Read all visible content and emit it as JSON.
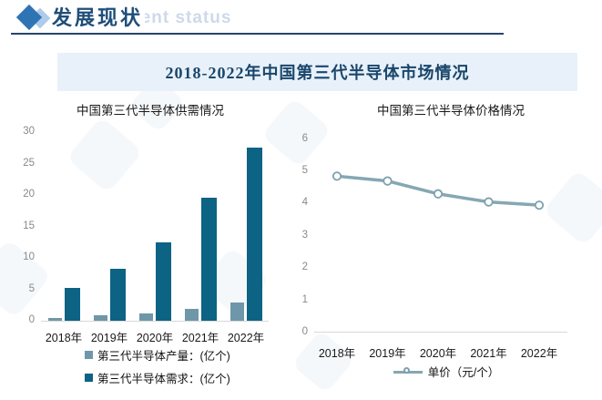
{
  "page": {
    "header": {
      "title": "发展现状",
      "watermark": "development status"
    },
    "banner_title": "2018-2022年中国第三代半导体市场情况"
  },
  "colors": {
    "production_bar": "#6f97a9",
    "demand_bar": "#0c6384",
    "price_line": "#86a7b3",
    "header_accent": "#2e74b5",
    "banner_bg": "#e8f1f9",
    "title_text": "#1f4e79"
  },
  "chart_data": [
    {
      "type": "bar",
      "title": "中国第三代半导体供需情况",
      "categories": [
        "2018年",
        "2019年",
        "2020年",
        "2021年",
        "2022年"
      ],
      "series": [
        {
          "name": "第三代半导体产量：(亿个)",
          "color": "#6f97a9",
          "values": [
            0.4,
            0.8,
            1.2,
            1.9,
            2.9
          ]
        },
        {
          "name": "第三代半导体需求：(亿个)",
          "color": "#0c6384",
          "values": [
            5.2,
            8.3,
            12.5,
            19.5,
            27.5
          ]
        }
      ],
      "xlabel": "",
      "ylabel": "",
      "ylim": [
        0,
        30
      ],
      "yticks": [
        0,
        5,
        10,
        15,
        20,
        25,
        30
      ],
      "grid": false,
      "legend_position": "bottom"
    },
    {
      "type": "line",
      "title": "中国第三代半导体价格情况",
      "categories": [
        "2018年",
        "2019年",
        "2020年",
        "2021年",
        "2022年"
      ],
      "series": [
        {
          "name": "单价（元/个）",
          "color": "#86a7b3",
          "values": [
            4.85,
            4.7,
            4.3,
            4.05,
            3.95
          ]
        }
      ],
      "xlabel": "",
      "ylabel": "",
      "ylim": [
        0,
        6
      ],
      "yticks": [
        0,
        1,
        2,
        3,
        4,
        5,
        6
      ],
      "grid": false,
      "marker": "open-circle",
      "legend_position": "bottom"
    }
  ]
}
